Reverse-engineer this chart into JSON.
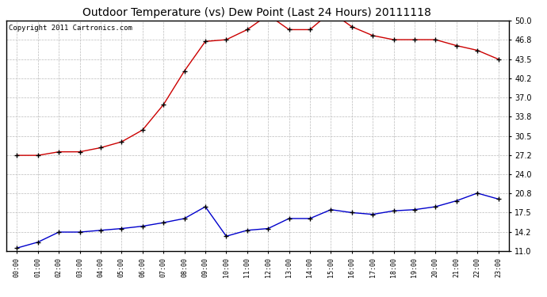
{
  "title": "Outdoor Temperature (vs) Dew Point (Last 24 Hours) 20111118",
  "copyright": "Copyright 2011 Cartronics.com",
  "x_labels": [
    "00:00",
    "01:00",
    "02:00",
    "03:00",
    "04:00",
    "05:00",
    "06:00",
    "07:00",
    "08:00",
    "09:00",
    "10:00",
    "11:00",
    "12:00",
    "13:00",
    "14:00",
    "15:00",
    "16:00",
    "17:00",
    "18:00",
    "19:00",
    "20:00",
    "21:00",
    "22:00",
    "23:00"
  ],
  "temp_red": [
    27.2,
    27.2,
    27.8,
    27.8,
    28.5,
    29.5,
    31.5,
    35.8,
    41.5,
    46.5,
    46.8,
    48.5,
    51.0,
    48.5,
    48.5,
    51.5,
    49.0,
    47.5,
    46.8,
    46.8,
    46.8,
    45.8,
    45.0,
    43.5
  ],
  "dew_blue": [
    11.5,
    12.5,
    14.2,
    14.2,
    14.5,
    14.8,
    15.2,
    15.8,
    16.5,
    18.5,
    13.5,
    14.5,
    14.8,
    16.5,
    16.5,
    18.0,
    17.5,
    17.2,
    17.8,
    18.0,
    18.5,
    19.5,
    20.8,
    19.8
  ],
  "ylim": [
    11.0,
    50.0
  ],
  "yticks": [
    11.0,
    14.2,
    17.5,
    20.8,
    24.0,
    27.2,
    30.5,
    33.8,
    37.0,
    40.2,
    43.5,
    46.8,
    50.0
  ],
  "red_color": "#cc0000",
  "blue_color": "#0000cc",
  "bg_color": "#ffffff",
  "grid_color": "#bbbbbb",
  "title_fontsize": 10,
  "copyright_fontsize": 6.5,
  "tick_fontsize": 7,
  "xlabel_fontsize": 6
}
